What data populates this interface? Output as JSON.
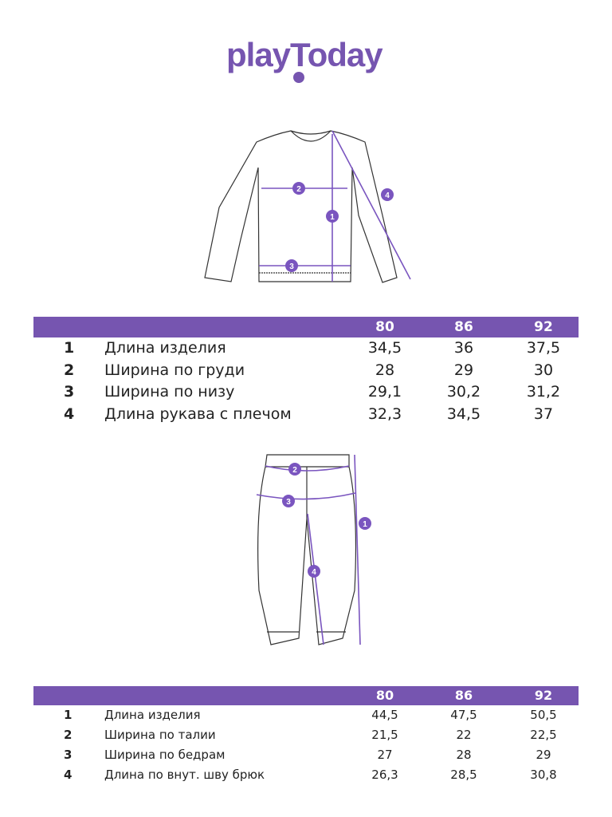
{
  "brand": {
    "logo_text": "playToday",
    "color": "#7655b0"
  },
  "shirt_table": {
    "sizes": [
      "80",
      "86",
      "92"
    ],
    "rows": [
      {
        "num": "1",
        "label": "Длина изделия",
        "values": [
          "34,5",
          "36",
          "37,5"
        ]
      },
      {
        "num": "2",
        "label": "Ширина по груди",
        "values": [
          "28",
          "29",
          "30"
        ]
      },
      {
        "num": "3",
        "label": "Ширина по низу",
        "values": [
          "29,1",
          "30,2",
          "31,2"
        ]
      },
      {
        "num": "4",
        "label": "Длина рукава с плечом",
        "values": [
          "32,3",
          "34,5",
          "37"
        ]
      }
    ]
  },
  "pants_table": {
    "sizes": [
      "80",
      "86",
      "92"
    ],
    "rows": [
      {
        "num": "1",
        "label": "Длина изделия",
        "values": [
          "44,5",
          "47,5",
          "50,5"
        ]
      },
      {
        "num": "2",
        "label": "Ширина по талии",
        "values": [
          "21,5",
          "22",
          "22,5"
        ]
      },
      {
        "num": "3",
        "label": "Ширина по бедрам",
        "values": [
          "27",
          "28",
          "29"
        ]
      },
      {
        "num": "4",
        "label": "Длина по внут. шву брюк",
        "values": [
          "26,3",
          "28,5",
          "30,8"
        ]
      }
    ]
  },
  "diagram_markers": {
    "shirt": [
      "1",
      "2",
      "3",
      "4"
    ],
    "pants": [
      "1",
      "2",
      "3",
      "4"
    ]
  }
}
